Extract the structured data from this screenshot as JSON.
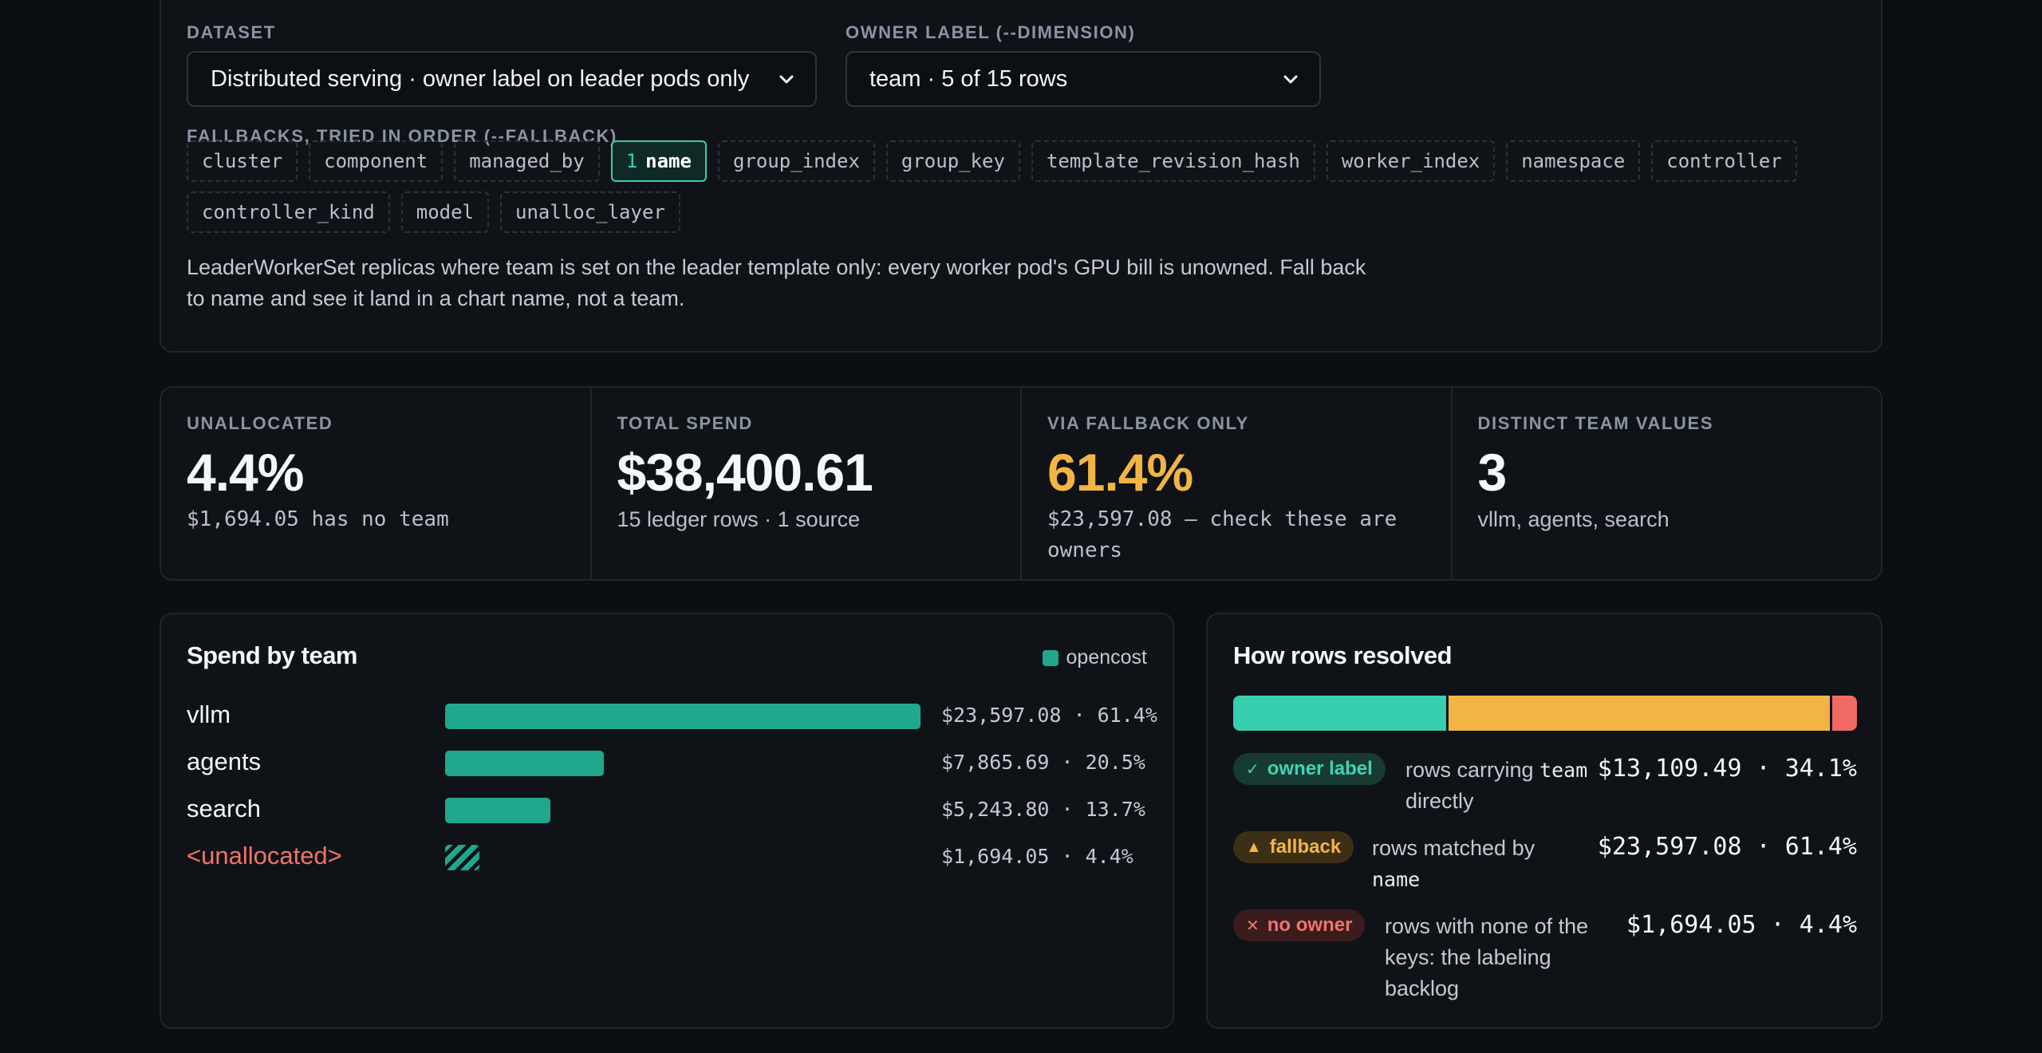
{
  "config": {
    "dataset_label": "DATASET",
    "dataset_value": "Distributed serving · owner label on leader pods only",
    "owner_label": "OWNER LABEL (--DIMENSION)",
    "owner_value": "team · 5 of 15 rows",
    "fallbacks_label": "FALLBACKS, TRIED IN ORDER (--FALLBACK)",
    "fallbacks": [
      {
        "key": "cluster"
      },
      {
        "key": "component"
      },
      {
        "key": "managed_by"
      },
      {
        "key": "name",
        "order": "1",
        "active": true
      },
      {
        "key": "group_index"
      },
      {
        "key": "group_key"
      },
      {
        "key": "template_revision_hash"
      },
      {
        "key": "worker_index"
      },
      {
        "key": "namespace"
      },
      {
        "key": "controller"
      },
      {
        "key": "controller_kind"
      },
      {
        "key": "model"
      },
      {
        "key": "unalloc_layer"
      }
    ],
    "description": "LeaderWorkerSet replicas where team is set on the leader template only: every worker pod's GPU bill is unowned. Fall back to name and see it land in a chart name, not a team."
  },
  "stats": {
    "unallocated": {
      "label": "UNALLOCATED",
      "value": "4.4%",
      "sub": "$1,694.05 has no team"
    },
    "total": {
      "label": "TOTAL SPEND",
      "value": "$38,400.61",
      "sub": "15 ledger rows · 1 source"
    },
    "fallback": {
      "label": "VIA FALLBACK ONLY",
      "value": "61.4%",
      "sub": "$23,597.08 — check these are owners"
    },
    "distinct": {
      "label": "DISTINCT TEAM VALUES",
      "value": "3",
      "sub": "vllm, agents, search"
    }
  },
  "spend": {
    "title": "Spend by team",
    "legend": "opencost",
    "colors": {
      "bar": "#20a88c",
      "unallocated_label": "#f0746a"
    }
  },
  "chart_data": {
    "type": "bar",
    "title": "Spend by team",
    "categories": [
      "vllm",
      "agents",
      "search",
      "<unallocated>"
    ],
    "series": [
      {
        "name": "opencost",
        "values": [
          23597.08,
          7865.69,
          5243.8,
          1694.05
        ]
      }
    ],
    "percent": [
      61.4,
      20.5,
      13.7,
      4.4
    ],
    "amount_labels": [
      "$23,597.08 · 61.4%",
      "$7,865.69 · 20.5%",
      "$5,243.80 · 13.7%",
      "$1,694.05 · 4.4%"
    ],
    "orientation": "horizontal",
    "legend": "top-right"
  },
  "resolved": {
    "title": "How rows resolved",
    "shares": [
      34.1,
      61.4,
      4.4
    ],
    "colors": {
      "owner": "#38cfb0",
      "fallback": "#f2b545",
      "noowner": "#ef6a63"
    },
    "rows": [
      {
        "badge": "owner label",
        "icon": "✓",
        "desc_pre": "rows carrying",
        "desc_code": "team",
        "desc_post": "directly",
        "amount": "$13,109.49 · 34.1%"
      },
      {
        "badge": "fallback",
        "icon": "▲",
        "desc_pre": "rows matched by",
        "desc_code": "name",
        "desc_post": "",
        "amount": "$23,597.08 · 61.4%"
      },
      {
        "badge": "no owner",
        "icon": "✕",
        "desc_pre": "rows with none of the keys: the labeling backlog",
        "desc_code": "",
        "desc_post": "",
        "amount": "$1,694.05 · 4.4%"
      }
    ]
  }
}
